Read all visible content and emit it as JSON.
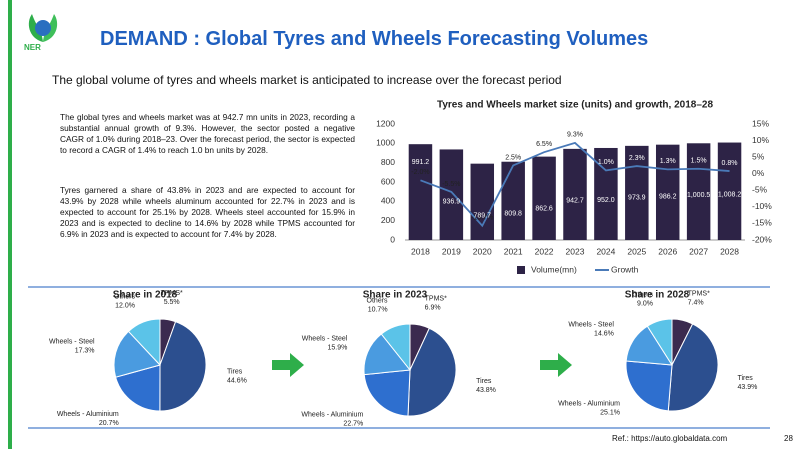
{
  "header": {
    "logo": "NER",
    "title": "DEMAND : Global Tyres and Wheels Forecasting Volumes",
    "subtitle": "The global volume of tyres and wheels market is anticipated to increase over the forecast period"
  },
  "paragraphs": [
    "The global tyres and wheels market was at 942.7 mn units in 2023, recording a substantial annual growth of 9.3%. However, the sector posted a negative CAGR of 1.0% during 2018–23. Over the forecast period, the sector is expected to record a CAGR of 1.4% to reach 1.0 bn units by 2028.",
    "Tyres garnered a share of 43.8% in 2023 and are expected to account for 43.9% by 2028 while wheels aluminum accounted for 22.7% in 2023 and is expected to account for 25.1% by 2028. Wheels steel accounted for 15.9% in 2023 and is expected to decline to 14.6% by 2028 while TPMS accounted for 6.9% in 2023 and is expected to account for 7.4% by 2028."
  ],
  "chart_data": [
    {
      "type": "bar",
      "title": "Tyres and Wheels market size (units) and growth, 2018–28",
      "categories": [
        "2018",
        "2019",
        "2020",
        "2021",
        "2022",
        "2023",
        "2024",
        "2025",
        "2026",
        "2027",
        "2028"
      ],
      "series": [
        {
          "name": "Volume(mn)",
          "color": "#2d2346",
          "values": [
            991.2,
            936.9,
            789.7,
            809.8,
            862.6,
            942.7,
            952.0,
            973.9,
            986.2,
            1000.5,
            1008.2
          ],
          "value_labels": [
            "991.2",
            "936.9",
            "789.7",
            "809.8",
            "862.6",
            "942.7",
            "952.0",
            "973.9",
            "986.2",
            "1,000.5",
            "1,008.2"
          ]
        },
        {
          "name": "Growth",
          "color": "#4a7ab8",
          "axis": "y2",
          "type": "line",
          "values": [
            -2.0,
            -5.5,
            -15.7,
            2.5,
            6.5,
            9.3,
            1.0,
            2.3,
            1.3,
            1.5,
            0.8
          ],
          "value_labels": [
            "-2.0%",
            "-5.5%",
            "-15.7%",
            "2.5%",
            "6.5%",
            "9.3%",
            "1.0%",
            "2.3%",
            "1.3%",
            "1.5%",
            "0.8%"
          ]
        }
      ],
      "ylim": [
        0,
        1200
      ],
      "yticks": [
        0,
        200,
        400,
        600,
        800,
        1000,
        1200
      ],
      "y2lim": [
        -20,
        15
      ],
      "y2ticks": [
        {
          "value": -20,
          "label": "-20%"
        },
        {
          "value": -15,
          "label": "-15%"
        },
        {
          "value": -10,
          "label": "-10%"
        },
        {
          "value": -5,
          "label": "-5%"
        },
        {
          "value": 0,
          "label": "0%"
        },
        {
          "value": 5,
          "label": "5%"
        },
        {
          "value": 10,
          "label": "10%"
        },
        {
          "value": 15,
          "label": "15%"
        }
      ],
      "legend": "bottom"
    },
    {
      "type": "pie",
      "title": "Share in 2018",
      "categories": [
        "TPMS*",
        "Tires",
        "Wheels - Aluminium",
        "Wheels - Steel",
        "Others"
      ],
      "values": [
        5.5,
        44.6,
        20.7,
        17.3,
        12.0
      ],
      "value_labels": [
        "5.5%",
        "44.6%",
        "20.7%",
        "17.3%",
        "12.0%"
      ],
      "colors": [
        "#3b2a4f",
        "#2c4f8f",
        "#2e6fcf",
        "#4a9be0",
        "#5bc3e8"
      ]
    },
    {
      "type": "pie",
      "title": "Share in 2023",
      "categories": [
        "TPMS*",
        "Tires",
        "Wheels - Aluminium",
        "Wheels - Steel",
        "Others"
      ],
      "values": [
        6.9,
        43.8,
        22.7,
        15.9,
        10.7
      ],
      "value_labels": [
        "6.9%",
        "43.8%",
        "22.7%",
        "15.9%",
        "10.7%"
      ],
      "colors": [
        "#3b2a4f",
        "#2c4f8f",
        "#2e6fcf",
        "#4a9be0",
        "#5bc3e8"
      ]
    },
    {
      "type": "pie",
      "title": "Share in 2028",
      "categories": [
        "TPMS*",
        "Tires",
        "Wheels - Aluminium",
        "Wheels - Steel",
        "Others"
      ],
      "values": [
        7.4,
        43.9,
        25.1,
        14.6,
        9.0
      ],
      "value_labels": [
        "7.4%",
        "43.9%",
        "25.1%",
        "14.6%",
        "9.0%"
      ],
      "colors": [
        "#3b2a4f",
        "#2c4f8f",
        "#2e6fcf",
        "#4a9be0",
        "#5bc3e8"
      ]
    }
  ],
  "footer": {
    "ref": "Ref.:  https://auto.globaldata.com",
    "page": "28"
  }
}
